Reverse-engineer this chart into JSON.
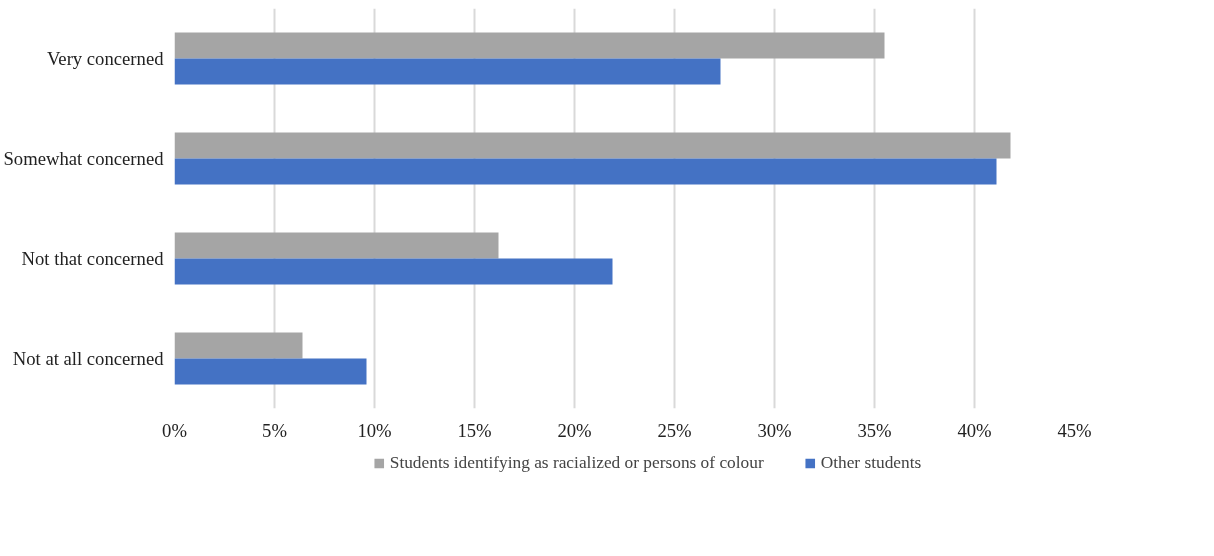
{
  "chart_data": {
    "type": "bar",
    "orientation": "horizontal",
    "categories": [
      "Very concerned",
      "Somewhat concerned",
      "Not that concerned",
      "Not at all concerned"
    ],
    "series": [
      {
        "name": "Students identifying as racialized or persons of colour",
        "color": "#a5a5a5",
        "values": [
          35.5,
          41.8,
          16.2,
          6.4
        ]
      },
      {
        "name": "Other students",
        "color": "#4472c4",
        "values": [
          27.3,
          41.1,
          21.9,
          9.6
        ]
      }
    ],
    "xlim": [
      0,
      45
    ],
    "xticks": [
      {
        "value": 0,
        "label": "0%"
      },
      {
        "value": 5,
        "label": "5%"
      },
      {
        "value": 10,
        "label": "10%"
      },
      {
        "value": 15,
        "label": "15%"
      },
      {
        "value": 20,
        "label": "20%"
      },
      {
        "value": 25,
        "label": "25%"
      },
      {
        "value": 30,
        "label": "30%"
      },
      {
        "value": 35,
        "label": "35%"
      },
      {
        "value": 40,
        "label": "40%"
      },
      {
        "value": 45,
        "label": "45%"
      }
    ],
    "grid": "x",
    "legend": "bottom"
  }
}
